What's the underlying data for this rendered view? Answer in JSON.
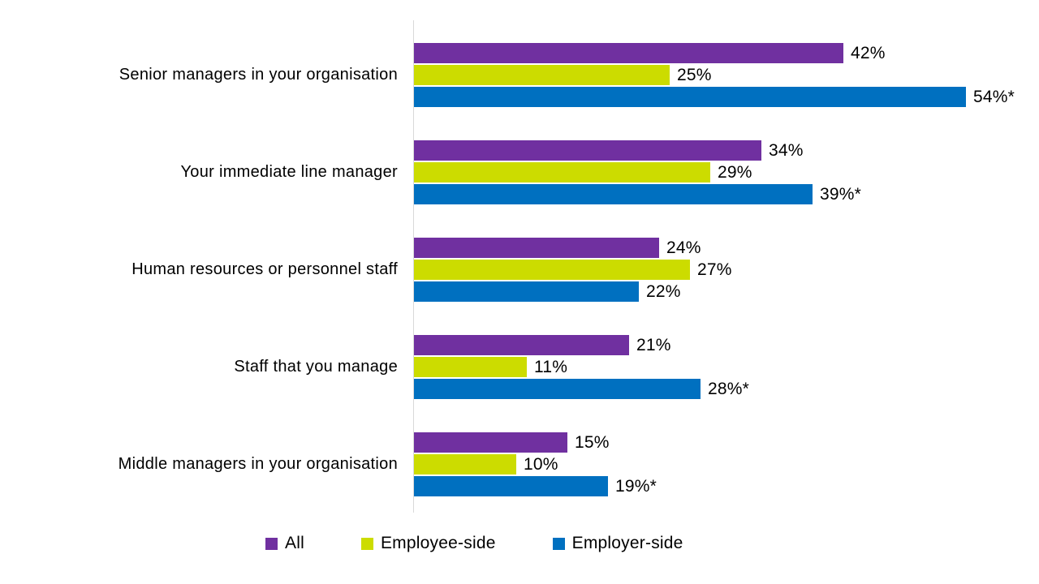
{
  "chart_data": {
    "type": "bar",
    "orientation": "horizontal",
    "title": "",
    "xlabel": "",
    "ylabel": "",
    "xlim": [
      0,
      60
    ],
    "grid": false,
    "legend_position": "bottom",
    "value_label_suffix": "%",
    "categories": [
      "Senior managers in your organisation",
      "Your immediate line manager",
      "Human resources or personnel staff",
      "Staff that you manage",
      "Middle managers in your organisation"
    ],
    "series": [
      {
        "name": "All",
        "color": "#7030A0",
        "values": [
          42,
          34,
          24,
          21,
          15
        ],
        "labels": [
          "42%",
          "34%",
          "24%",
          "21%",
          "15%"
        ]
      },
      {
        "name": "Employee-side",
        "color": "#CCDC00",
        "values": [
          25,
          29,
          27,
          11,
          10
        ],
        "labels": [
          "25%",
          "29%",
          "27%",
          "11%",
          "10%"
        ]
      },
      {
        "name": "Employer-side",
        "color": "#0070C0",
        "values": [
          54,
          39,
          22,
          28,
          19
        ],
        "labels": [
          "54%*",
          "39%*",
          "22%",
          "28%*",
          "19%*"
        ]
      }
    ],
    "colors": {
      "axis_line": "#D9D9D9",
      "text": "#000000"
    }
  }
}
